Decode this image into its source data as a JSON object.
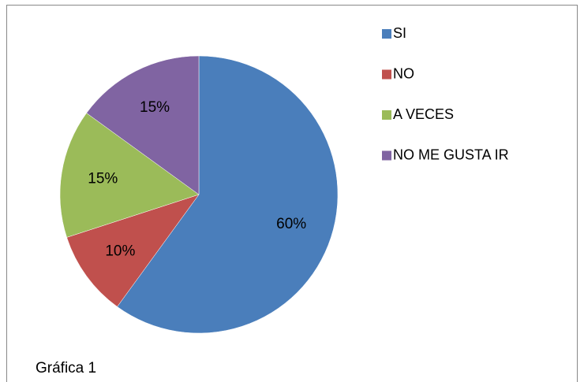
{
  "chart_data": {
    "type": "pie",
    "categories": [
      "SI",
      "NO",
      "A VECES",
      "NO ME GUSTA IR"
    ],
    "values": [
      60,
      10,
      15,
      15
    ],
    "value_labels": [
      "60%",
      "10%",
      "15%",
      "15%"
    ],
    "colors": [
      "#4a7ebb",
      "#c0504d",
      "#9bbb59",
      "#8064a2"
    ],
    "legend": "right",
    "annotation": "Gráfica 1"
  }
}
